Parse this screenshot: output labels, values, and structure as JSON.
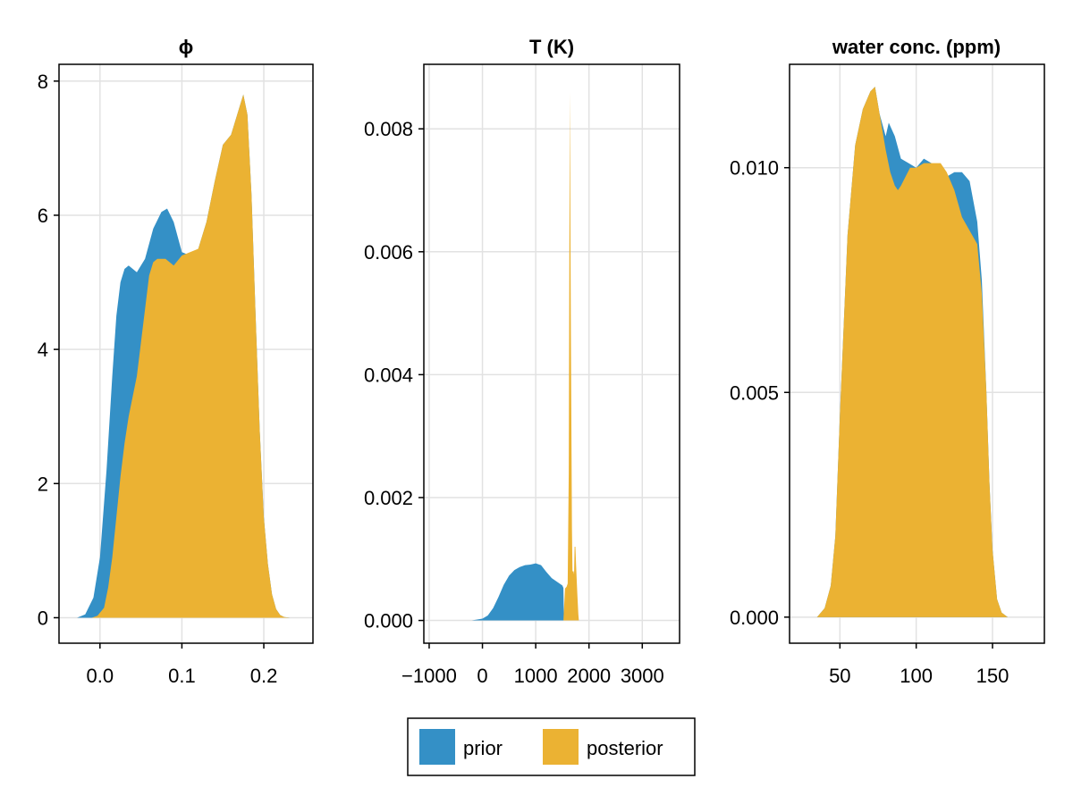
{
  "colors": {
    "prior": "#3490c6",
    "posterior": "#ebb233",
    "grid": "#e2e2e2",
    "frame": "#000000"
  },
  "legend": {
    "entries": [
      "prior",
      "posterior"
    ],
    "placement": "bottom-center"
  },
  "chart_data": [
    {
      "type": "area",
      "title": "ϕ",
      "xlabel": "",
      "ylabel": "",
      "xlim": [
        -0.05,
        0.26
      ],
      "ylim": [
        -0.38,
        8.25
      ],
      "xticks": [
        0.0,
        0.1,
        0.2
      ],
      "xtick_labels": [
        "0.0",
        "0.1",
        "0.2"
      ],
      "yticks": [
        0,
        2,
        4,
        6,
        8
      ],
      "ytick_labels": [
        "0",
        "2",
        "4",
        "6",
        "8"
      ],
      "grid": true,
      "series": [
        {
          "name": "prior",
          "x": [
            -0.028,
            -0.018,
            -0.008,
            0.0,
            0.008,
            0.015,
            0.02,
            0.025,
            0.03,
            0.035,
            0.045,
            0.055,
            0.065,
            0.075,
            0.082,
            0.09,
            0.1,
            0.11,
            0.12,
            0.13,
            0.14,
            0.15,
            0.16,
            0.17,
            0.175,
            0.18,
            0.185,
            0.19,
            0.195,
            0.2,
            0.205,
            0.21,
            0.215,
            0.22,
            0.225,
            0.232
          ],
          "y": [
            0.0,
            0.05,
            0.3,
            0.9,
            2.2,
            3.6,
            4.5,
            5.0,
            5.2,
            5.25,
            5.15,
            5.35,
            5.8,
            6.05,
            6.1,
            5.9,
            5.45,
            5.4,
            5.5,
            5.9,
            6.5,
            7.05,
            7.2,
            7.6,
            7.8,
            7.5,
            6.3,
            4.5,
            2.8,
            1.5,
            0.8,
            0.35,
            0.13,
            0.04,
            0.01,
            0.0
          ]
        },
        {
          "name": "posterior",
          "x": [
            -0.022,
            -0.01,
            -0.003,
            0.005,
            0.01,
            0.015,
            0.02,
            0.025,
            0.03,
            0.035,
            0.04,
            0.045,
            0.05,
            0.055,
            0.06,
            0.065,
            0.07,
            0.08,
            0.09,
            0.1,
            0.11,
            0.12,
            0.13,
            0.14,
            0.15,
            0.16,
            0.17,
            0.175,
            0.18,
            0.185,
            0.19,
            0.195,
            0.2,
            0.205,
            0.21,
            0.215,
            0.22,
            0.225,
            0.232
          ],
          "y": [
            0.0,
            0.0,
            0.03,
            0.15,
            0.45,
            0.9,
            1.5,
            2.1,
            2.6,
            3.0,
            3.3,
            3.6,
            4.1,
            4.6,
            5.1,
            5.3,
            5.35,
            5.35,
            5.25,
            5.4,
            5.45,
            5.5,
            5.9,
            6.5,
            7.05,
            7.2,
            7.6,
            7.8,
            7.5,
            6.3,
            4.5,
            2.8,
            1.5,
            0.8,
            0.35,
            0.13,
            0.04,
            0.01,
            0.0
          ]
        }
      ]
    },
    {
      "type": "area",
      "title": "T (K)",
      "xlabel": "",
      "ylabel": "",
      "xlim": [
        -1100,
        3700
      ],
      "ylim": [
        -0.00037,
        0.00905
      ],
      "xticks": [
        -1000,
        0,
        1000,
        2000,
        3000
      ],
      "xtick_labels": [
        "−1000",
        "0",
        "1000",
        "2000",
        "3000"
      ],
      "yticks": [
        0.0,
        0.002,
        0.004,
        0.006,
        0.008
      ],
      "ytick_labels": [
        "0.000",
        "0.002",
        "0.004",
        "0.006",
        "0.008"
      ],
      "grid": true,
      "series": [
        {
          "name": "prior",
          "x": [
            -500,
            -200,
            0,
            100,
            200,
            300,
            400,
            500,
            600,
            700,
            800,
            900,
            1000,
            1100,
            1200,
            1300,
            1400,
            1500,
            1520,
            1530
          ],
          "y": [
            0.0,
            0.0,
            3e-05,
            8e-05,
            0.0002,
            0.00038,
            0.00058,
            0.00073,
            0.00082,
            0.00087,
            0.0009,
            0.00091,
            0.00093,
            0.0009,
            0.00079,
            0.00069,
            0.00063,
            0.00057,
            0.00053,
            0.0
          ]
        },
        {
          "name": "posterior",
          "x": [
            1520,
            1550,
            1580,
            1600,
            1620,
            1640,
            1660,
            1680,
            1690,
            1700,
            1710,
            1720,
            1730,
            1745,
            1760,
            1780,
            1800,
            1810
          ],
          "y": [
            0.0,
            0.00052,
            0.00055,
            0.0006,
            0.0024,
            0.0086,
            0.0047,
            0.0015,
            0.0008,
            0.0008,
            0.0008,
            0.00075,
            0.0012,
            0.0012,
            0.00085,
            0.00045,
            0.0001,
            0.0
          ]
        }
      ]
    },
    {
      "type": "area",
      "title": "water conc. (ppm)",
      "xlabel": "",
      "ylabel": "",
      "xlim": [
        17,
        184
      ],
      "ylim": [
        -0.00058,
        0.0123
      ],
      "xticks": [
        50,
        100,
        150
      ],
      "xtick_labels": [
        "50",
        "100",
        "150"
      ],
      "yticks": [
        0.0,
        0.005,
        0.01
      ],
      "ytick_labels": [
        "0.000",
        "0.005",
        "0.010"
      ],
      "grid": true,
      "series": [
        {
          "name": "prior",
          "x": [
            35,
            40,
            44,
            47,
            50,
            55,
            60,
            65,
            70,
            73,
            76,
            80,
            82,
            86,
            90,
            95,
            100,
            105,
            110,
            115,
            120,
            125,
            130,
            135,
            140,
            143,
            146,
            148,
            150,
            153,
            156,
            160,
            165
          ],
          "y": [
            0.0,
            0.0002,
            0.0007,
            0.0018,
            0.0045,
            0.0085,
            0.0105,
            0.0113,
            0.0117,
            0.0118,
            0.0112,
            0.0107,
            0.011,
            0.0107,
            0.0102,
            0.0101,
            0.01,
            0.0102,
            0.0101,
            0.0099,
            0.0098,
            0.0099,
            0.0099,
            0.0097,
            0.0088,
            0.0075,
            0.005,
            0.003,
            0.0015,
            0.0004,
            0.0001,
            0.0,
            0.0
          ]
        },
        {
          "name": "posterior",
          "x": [
            35,
            40,
            44,
            47,
            50,
            55,
            60,
            65,
            70,
            73,
            76,
            80,
            83,
            86,
            88,
            90,
            93,
            96,
            100,
            105,
            110,
            113,
            116,
            120,
            125,
            130,
            135,
            140,
            143,
            146,
            148,
            150,
            153,
            156,
            160,
            165
          ],
          "y": [
            0.0,
            0.0002,
            0.0007,
            0.0018,
            0.0045,
            0.0085,
            0.0105,
            0.0113,
            0.0117,
            0.0118,
            0.0112,
            0.0104,
            0.0099,
            0.0096,
            0.0095,
            0.0096,
            0.0098,
            0.01,
            0.01,
            0.0101,
            0.0101,
            0.0101,
            0.0101,
            0.0099,
            0.0095,
            0.0089,
            0.0086,
            0.0083,
            0.0072,
            0.005,
            0.003,
            0.0015,
            0.0004,
            0.0001,
            0.0,
            0.0
          ]
        }
      ]
    }
  ]
}
